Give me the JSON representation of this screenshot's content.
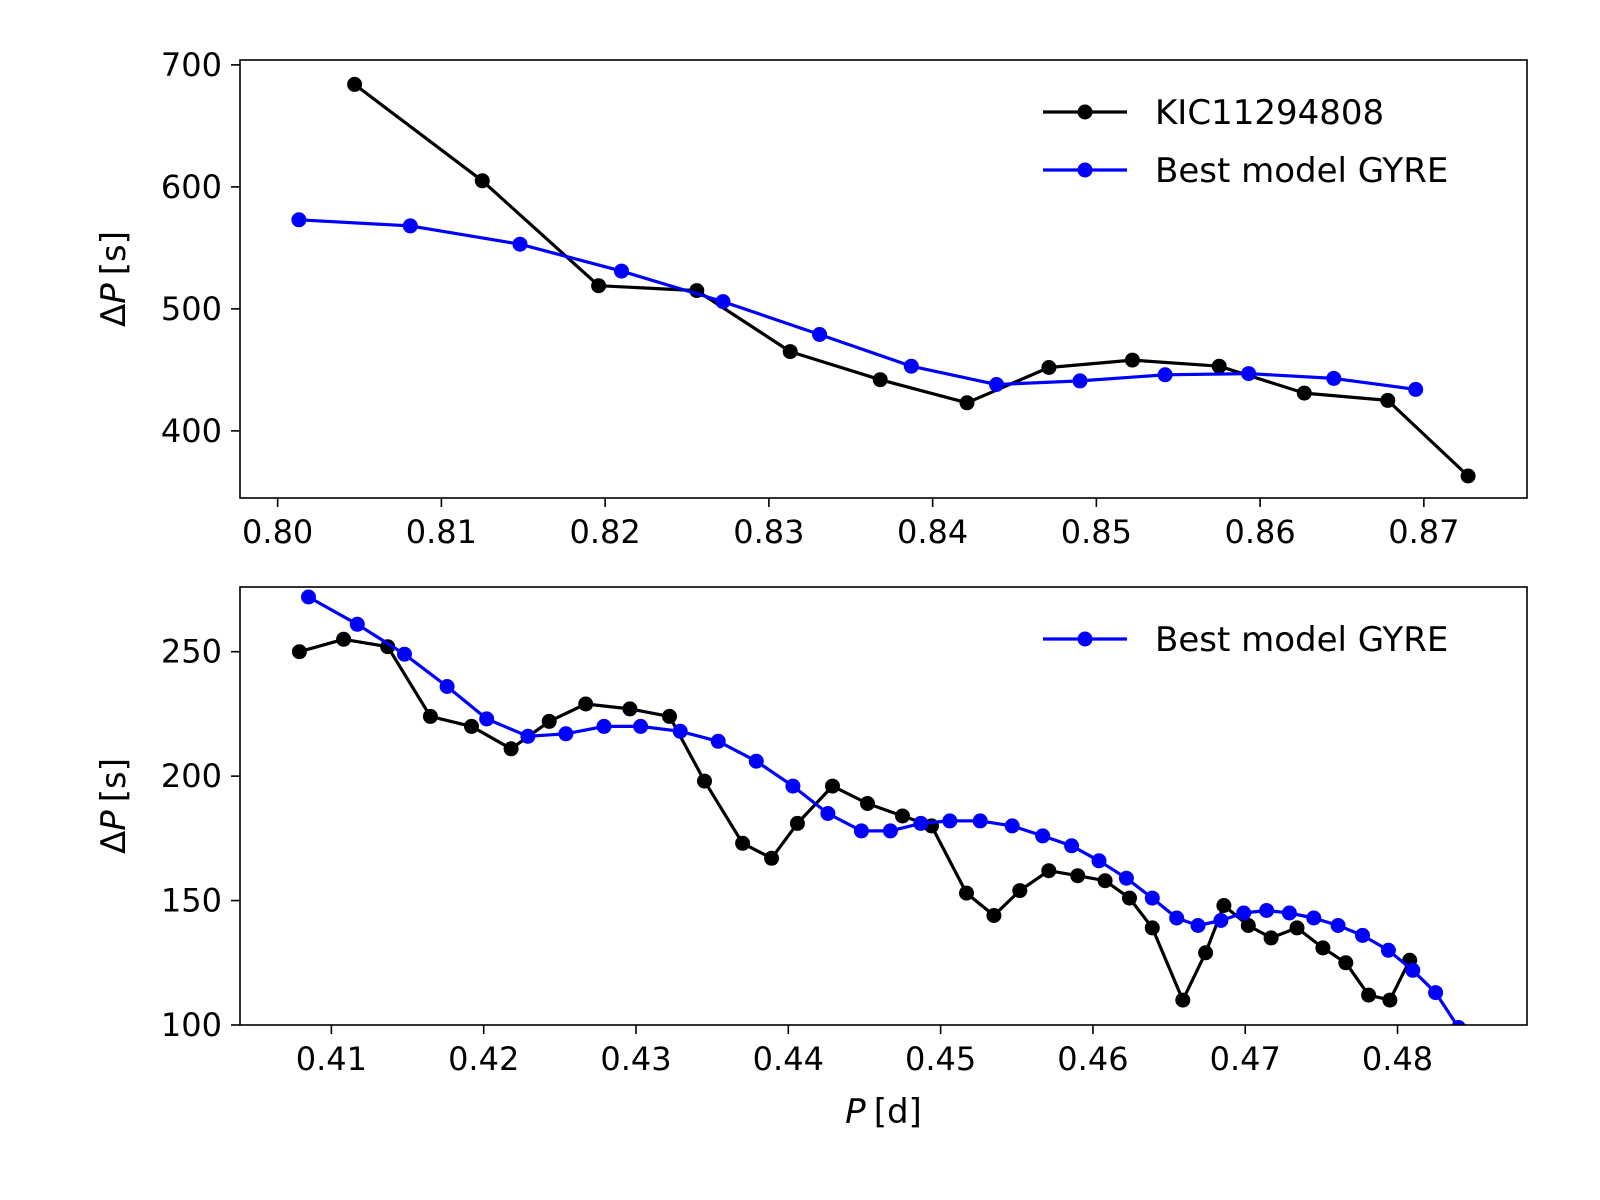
{
  "chart_data": [
    {
      "type": "line",
      "xlabel": "",
      "ylabel_delta": "Δ",
      "ylabel_var": "P",
      "ylabel_unit": "[s]",
      "xlim": [
        0.7977,
        0.8763
      ],
      "ylim": [
        345,
        704
      ],
      "xticks": [
        "0.80",
        "0.81",
        "0.82",
        "0.83",
        "0.84",
        "0.85",
        "0.86",
        "0.87"
      ],
      "xtick_values": [
        0.8,
        0.81,
        0.82,
        0.83,
        0.84,
        0.85,
        0.86,
        0.87
      ],
      "yticks": [
        "400",
        "500",
        "600",
        "700"
      ],
      "ytick_values": [
        400,
        500,
        600,
        700
      ],
      "legend_position": "top-right",
      "series": [
        {
          "name": "KIC11294808",
          "color": "#000000",
          "x": [
            0.8047,
            0.8125,
            0.8196,
            0.8256,
            0.8313,
            0.8368,
            0.8421,
            0.8471,
            0.8522,
            0.8575,
            0.8627,
            0.8678,
            0.8727
          ],
          "y": [
            684,
            605,
            519,
            515,
            465,
            442,
            423,
            452,
            458,
            453,
            431,
            425,
            363
          ]
        },
        {
          "name": "Best model GYRE",
          "color": "#0000ff",
          "x": [
            0.8013,
            0.8081,
            0.8148,
            0.821,
            0.8272,
            0.8331,
            0.8387,
            0.8439,
            0.849,
            0.8542,
            0.8593,
            0.8645,
            0.8695
          ],
          "y": [
            573,
            568,
            553,
            531,
            506,
            479,
            453,
            438,
            441,
            446,
            447,
            443,
            434
          ]
        }
      ]
    },
    {
      "type": "line",
      "xlabel_var": "P",
      "xlabel_unit": "[d]",
      "ylabel_delta": "Δ",
      "ylabel_var": "P",
      "ylabel_unit": "[s]",
      "xlim": [
        0.404,
        0.4885
      ],
      "ylim": [
        100,
        276
      ],
      "xticks": [
        "0.41",
        "0.42",
        "0.43",
        "0.44",
        "0.45",
        "0.46",
        "0.47",
        "0.48"
      ],
      "xtick_values": [
        0.41,
        0.42,
        0.43,
        0.44,
        0.45,
        0.46,
        0.47,
        0.48
      ],
      "yticks": [
        "100",
        "150",
        "200",
        "250"
      ],
      "ytick_values": [
        100,
        150,
        200,
        250
      ],
      "legend_position": "top-right",
      "series": [
        {
          "name": "",
          "color": "#000000",
          "x": [
            0.4079,
            0.4108,
            0.4137,
            0.4165,
            0.4192,
            0.4218,
            0.4243,
            0.4267,
            0.4296,
            0.4322,
            0.4345,
            0.437,
            0.4389,
            0.4406,
            0.4429,
            0.4452,
            0.4475,
            0.4494,
            0.4517,
            0.4535,
            0.4552,
            0.4571,
            0.459,
            0.4608,
            0.4624,
            0.4639,
            0.4659,
            0.4674,
            0.4686,
            0.4702,
            0.4717,
            0.4734,
            0.4751,
            0.4766,
            0.4781,
            0.4795,
            0.4808
          ],
          "y": [
            250,
            255,
            252,
            224,
            220,
            211,
            222,
            229,
            227,
            224,
            198,
            173,
            167,
            181,
            196,
            189,
            184,
            180,
            153,
            144,
            154,
            162,
            160,
            158,
            151,
            139,
            110,
            129,
            148,
            140,
            135,
            139,
            131,
            125,
            112,
            110,
            126
          ]
        },
        {
          "name": "Best model GYRE",
          "color": "#0000ff",
          "x": [
            0.4085,
            0.4117,
            0.4148,
            0.4176,
            0.4202,
            0.4229,
            0.4254,
            0.4279,
            0.4303,
            0.4329,
            0.4354,
            0.4379,
            0.4403,
            0.4426,
            0.4448,
            0.4467,
            0.4487,
            0.4506,
            0.4526,
            0.4547,
            0.4567,
            0.4586,
            0.4604,
            0.4622,
            0.4639,
            0.4655,
            0.4669,
            0.4684,
            0.4699,
            0.4714,
            0.4729,
            0.4745,
            0.4761,
            0.4777,
            0.4794,
            0.481,
            0.4825,
            0.484
          ],
          "y": [
            272,
            261,
            249,
            236,
            223,
            216,
            217,
            220,
            220,
            218,
            214,
            206,
            196,
            185,
            178,
            178,
            181,
            182,
            182,
            180,
            176,
            172,
            166,
            159,
            151,
            143,
            140,
            142,
            145,
            146,
            145,
            143,
            140,
            136,
            130,
            122,
            113,
            99
          ]
        }
      ]
    }
  ]
}
